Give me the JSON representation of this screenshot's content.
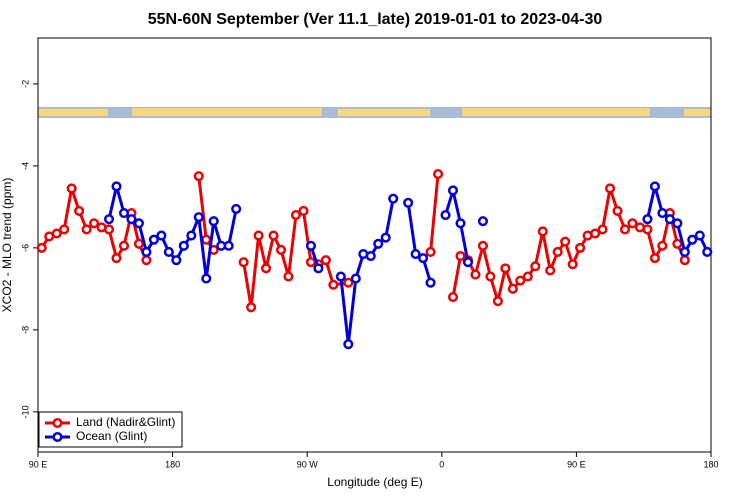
{
  "chart_data": {
    "type": "line",
    "title": "55N-60N September (Ver 11.1_late)   2019-01-01 to 2023-04-30",
    "x_label": "Longitude (deg E)",
    "y_label": "XCO2 - MLO trend (ppm)",
    "xlim": [
      90,
      540
    ],
    "ylim": [
      -10.98,
      -0.88
    ],
    "xticks": [
      {
        "value": 90,
        "label": "90 E"
      },
      180,
      {
        "value": 270,
        "label": "90 W"
      },
      {
        "value": 360,
        "label": "0"
      },
      {
        "value": 450,
        "label": "90 E"
      },
      {
        "value": 540,
        "label": "180"
      }
    ],
    "yticks": [
      -10,
      -8,
      -6,
      -4,
      -2
    ],
    "grid": false,
    "legend": "bottom-left",
    "series": [
      {
        "name": "Land (Nadir&Glint)",
        "color": "#ee0000",
        "x": [
          92.5,
          97.5,
          102.5,
          107.5,
          112.5,
          117.5,
          122.5,
          127.5,
          132.5,
          137.5,
          142.5,
          147.5,
          152.5,
          157.5,
          162.5,
          167.5,
          197.5,
          202.5,
          207.5,
          212.5,
          227.5,
          232.5,
          237.5,
          242.5,
          247.5,
          252.5,
          257.5,
          262.5,
          267.5,
          272.5,
          277.5,
          282.5,
          287.5,
          297.5,
          302.5,
          352.5,
          357.5,
          362.5,
          367.5,
          372.5,
          377.5,
          382.5,
          387.5,
          392.5,
          397.5,
          402.5,
          407.5,
          412.5,
          417.5,
          422.5,
          427.5,
          432.5,
          437.5,
          442.5,
          447.5,
          452.5,
          457.5,
          462.5,
          467.5,
          472.5,
          477.5,
          482.5,
          487.5,
          492.5,
          497.5,
          502.5,
          507.5,
          512.5,
          517.5,
          522.5
        ],
        "values": [
          -6.0,
          -5.72,
          -5.65,
          -5.55,
          -4.55,
          -5.1,
          -5.55,
          -5.4,
          -5.5,
          -5.55,
          -6.25,
          -5.95,
          -5.15,
          -5.9,
          -6.3,
          null,
          -4.25,
          -5.8,
          -6.05,
          null,
          -6.35,
          -7.45,
          -5.7,
          -6.5,
          -5.7,
          -6.05,
          -6.7,
          -5.2,
          -5.1,
          -6.35,
          -6.4,
          -6.3,
          -6.9,
          -6.85,
          null,
          -6.1,
          -4.2,
          null,
          -7.2,
          -6.2,
          -6.3,
          -6.65,
          -5.95,
          -6.7,
          -7.3,
          -6.5,
          -7.0,
          -6.8,
          -6.7,
          -6.45,
          -5.6,
          -6.55,
          -6.1,
          -5.85,
          -6.4,
          -6.0,
          -5.7,
          -5.65,
          -5.55,
          -4.55,
          -5.1,
          -5.55,
          -5.4,
          -5.5,
          -5.55,
          -6.25,
          -5.95,
          -5.15,
          -5.9,
          -6.3
        ]
      },
      {
        "name": "Ocean (Glint)",
        "color": "#0000dd",
        "x": [
          137.5,
          142.5,
          147.5,
          152.5,
          157.5,
          162.5,
          167.5,
          172.5,
          177.5,
          182.5,
          187.5,
          192.5,
          197.5,
          202.5,
          207.5,
          212.5,
          217.5,
          222.5,
          227.5,
          272.5,
          277.5,
          282.5,
          292.5,
          297.5,
          302.5,
          307.5,
          312.5,
          317.5,
          322.5,
          327.5,
          332.5,
          337.5,
          342.5,
          347.5,
          352.5,
          357.5,
          362.5,
          367.5,
          372.5,
          377.5,
          382.5,
          387.5,
          392.5,
          497.5,
          502.5,
          507.5,
          512.5,
          517.5,
          522.5,
          527.5,
          532.5,
          537.5
        ],
        "values": [
          -5.3,
          -4.5,
          -5.15,
          -5.3,
          -5.4,
          -6.1,
          -5.8,
          -5.7,
          -6.1,
          -6.3,
          -5.95,
          -5.7,
          -5.25,
          -6.75,
          -5.35,
          -5.95,
          -5.95,
          -5.05,
          null,
          -5.95,
          -6.5,
          null,
          -6.7,
          -8.35,
          -6.75,
          -6.15,
          -6.2,
          -5.9,
          -5.75,
          -4.8,
          null,
          -4.9,
          -6.15,
          -6.25,
          -6.85,
          null,
          -5.2,
          -4.6,
          -5.4,
          -6.35,
          null,
          -5.35,
          null,
          -5.3,
          -4.5,
          -5.15,
          -5.3,
          -5.4,
          -6.1,
          -5.8,
          -5.7,
          -6.1
        ]
      }
    ]
  }
}
